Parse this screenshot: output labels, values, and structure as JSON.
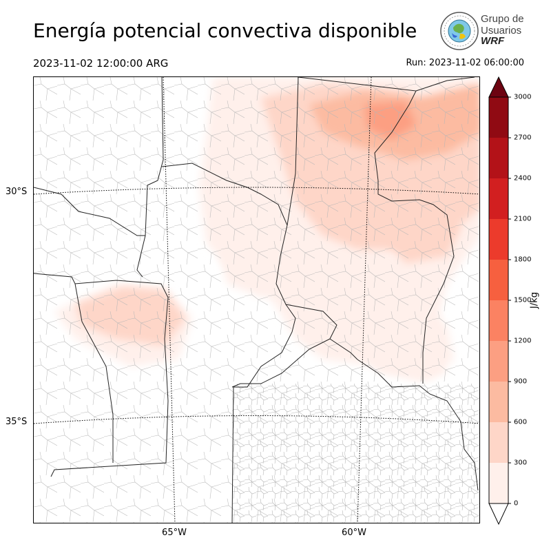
{
  "title": "Energía potencial convectiva disponible",
  "valid_time": "2023-11-02 12:00:00 ARG",
  "run_time": "Run: 2023-11-02 06:00:00",
  "logo": {
    "lines": [
      "Grupo de",
      "Usuarios",
      "WRF"
    ],
    "icon": "globe-seal-icon"
  },
  "map": {
    "variable": "CAPE",
    "region": "Centro de Argentina",
    "latitude_labels": [
      "30°S",
      "35°S"
    ],
    "longitude_labels": [
      "65°W",
      "60°W"
    ]
  },
  "colorbar": {
    "unit": "J/kg",
    "ticks": [
      "0",
      "300",
      "600",
      "900",
      "1200",
      "1500",
      "1800",
      "2100",
      "2400",
      "2700",
      "3000"
    ],
    "colors": [
      "#fff0eb",
      "#fed6c8",
      "#fcbba1",
      "#fc9f82",
      "#fb8262",
      "#f6603f",
      "#ec3b2c",
      "#d21f20",
      "#b31218",
      "#900a13",
      "#7a0510"
    ],
    "extend": "both"
  }
}
